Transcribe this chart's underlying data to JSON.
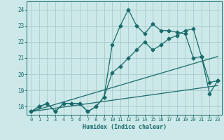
{
  "xlabel": "Humidex (Indice chaleur)",
  "xlim": [
    -0.5,
    23.5
  ],
  "ylim": [
    17.5,
    24.5
  ],
  "yticks": [
    18,
    19,
    20,
    21,
    22,
    23,
    24
  ],
  "xticks": [
    0,
    1,
    2,
    3,
    4,
    5,
    6,
    7,
    8,
    9,
    10,
    11,
    12,
    13,
    14,
    15,
    16,
    17,
    18,
    19,
    20,
    21,
    22,
    23
  ],
  "bg_color": "#cce8e8",
  "grid_color": "#aacccc",
  "line_color": "#1a6b6b",
  "line1_x": [
    0,
    1,
    2,
    3,
    4,
    5,
    6,
    7,
    8,
    9,
    10,
    11,
    12,
    13,
    14,
    15,
    16,
    17,
    18,
    19,
    20,
    21,
    22,
    23
  ],
  "line1_y": [
    17.7,
    18.0,
    18.2,
    17.7,
    18.2,
    18.2,
    18.2,
    17.7,
    18.0,
    18.6,
    21.8,
    23.0,
    24.0,
    23.0,
    22.5,
    23.1,
    22.7,
    22.7,
    22.6,
    22.5,
    21.0,
    21.1,
    18.8,
    19.6
  ],
  "line2_x": [
    0,
    1,
    2,
    3,
    4,
    5,
    6,
    7,
    8,
    9,
    10,
    11,
    12,
    13,
    14,
    15,
    16,
    17,
    18,
    19,
    20,
    21,
    22,
    23
  ],
  "line2_y": [
    17.7,
    18.0,
    18.2,
    17.7,
    18.2,
    18.2,
    18.2,
    17.7,
    18.0,
    18.6,
    20.1,
    20.5,
    21.0,
    21.5,
    22.0,
    21.5,
    21.8,
    22.2,
    22.4,
    22.7,
    22.8,
    21.1,
    19.5,
    19.6
  ],
  "trend1_x": [
    0,
    23
  ],
  "trend1_y": [
    17.7,
    19.3
  ],
  "trend2_x": [
    0,
    23
  ],
  "trend2_y": [
    17.7,
    21.1
  ]
}
